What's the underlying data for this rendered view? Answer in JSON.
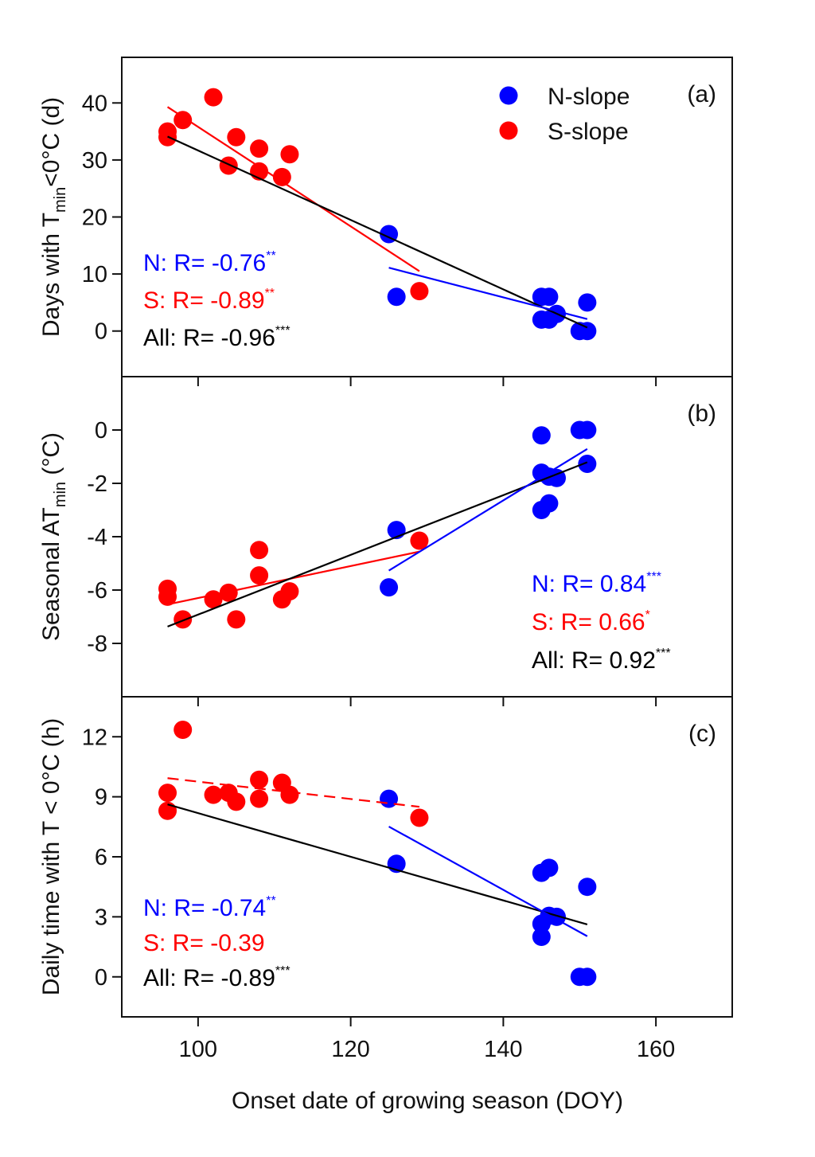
{
  "chart_data": {
    "type": "scatter",
    "xlabel": "Onset date of growing season (DOY)",
    "xlim": [
      90,
      170
    ],
    "xticks": [
      100,
      120,
      140,
      160
    ],
    "colors": {
      "N-slope": "#0000ff",
      "S-slope": "#ff0000",
      "All": "#000000"
    },
    "legend": {
      "placement": "top-right",
      "entries": [
        {
          "name": "N-slope",
          "color": "#0000ff"
        },
        {
          "name": "S-slope",
          "color": "#ff0000"
        }
      ]
    },
    "grid": false,
    "panels": [
      {
        "label": "(a)",
        "ylabel": {
          "main": "Days with T",
          "sub": "min",
          "rest": "<0°C (d)"
        },
        "ylim": [
          -8,
          48
        ],
        "yticks": [
          0,
          10,
          20,
          30,
          40
        ],
        "series": [
          {
            "name": "N-slope",
            "x": [
              125,
              126,
              145,
              146,
              145,
              146,
              147,
              150,
              151,
              151
            ],
            "y": [
              17,
              6,
              6,
              6,
              2,
              2,
              3,
              0,
              0,
              5
            ]
          },
          {
            "name": "S-slope",
            "x": [
              96,
              96,
              98,
              102,
              104,
              105,
              108,
              108,
              111,
              112,
              129
            ],
            "y": [
              35,
              34,
              37,
              41,
              29,
              34,
              32,
              28,
              27,
              31,
              7
            ]
          }
        ],
        "fits": [
          {
            "group": "S-slope",
            "x": [
              96,
              129
            ],
            "y": [
              39.3,
              10.5
            ],
            "dashed": false
          },
          {
            "group": "All",
            "x": [
              96,
              151
            ],
            "y": [
              34.1,
              0.6
            ],
            "dashed": false
          },
          {
            "group": "N-slope",
            "x": [
              125,
              151
            ],
            "y": [
              11.1,
              2.1
            ],
            "dashed": false
          }
        ],
        "annotations": [
          {
            "group": "N-slope",
            "text": "N: R= -0.76",
            "sig": "**"
          },
          {
            "group": "S-slope",
            "text": "S: R= -0.89",
            "sig": "**"
          },
          {
            "group": "All",
            "text": "All: R= -0.96",
            "sig": "***"
          }
        ]
      },
      {
        "label": "(b)",
        "ylabel": {
          "main": "Seasonal AT",
          "sub": "min",
          "rest": " (°C)"
        },
        "ylim": [
          -10,
          2
        ],
        "yticks": [
          0,
          -2,
          -4,
          -6,
          -8
        ],
        "series": [
          {
            "name": "N-slope",
            "x": [
              125,
              126,
              145,
              145,
              145,
              146,
              146,
              147,
              150,
              151,
              151
            ],
            "y": [
              -5.9,
              -3.75,
              -0.2,
              -1.6,
              -3.0,
              -2.75,
              -1.75,
              -1.8,
              0,
              0,
              -1.27
            ]
          },
          {
            "name": "S-slope",
            "x": [
              96,
              96,
              98,
              102,
              104,
              105,
              108,
              108,
              111,
              112,
              129
            ],
            "y": [
              -5.95,
              -6.25,
              -7.1,
              -6.35,
              -6.1,
              -7.1,
              -4.5,
              -5.45,
              -6.35,
              -6.05,
              -4.15
            ]
          }
        ],
        "fits": [
          {
            "group": "S-slope",
            "x": [
              96,
              129
            ],
            "y": [
              -6.54,
              -4.56
            ],
            "dashed": false
          },
          {
            "group": "All",
            "x": [
              96,
              151
            ],
            "y": [
              -7.37,
              -1.21
            ],
            "dashed": false
          },
          {
            "group": "N-slope",
            "x": [
              125,
              151
            ],
            "y": [
              -5.27,
              -0.71
            ],
            "dashed": false
          }
        ],
        "annotations": [
          {
            "group": "N-slope",
            "text": "N: R= 0.84",
            "sig": "***"
          },
          {
            "group": "S-slope",
            "text": "S: R= 0.66",
            "sig": "*"
          },
          {
            "group": "All",
            "text": "All: R= 0.92",
            "sig": "***"
          }
        ]
      },
      {
        "label": "(c)",
        "ylabel": {
          "main": "Daily time with T < 0°C (h)",
          "sub": "",
          "rest": ""
        },
        "ylim": [
          -2,
          14
        ],
        "yticks": [
          0,
          3,
          6,
          9,
          12
        ],
        "series": [
          {
            "name": "N-slope",
            "x": [
              125,
              126,
              145,
              146,
              145,
              145,
              146,
              147,
              150,
              151,
              151
            ],
            "y": [
              8.9,
              5.65,
              5.2,
              5.45,
              2.65,
              2.0,
              3.05,
              3.0,
              0,
              0,
              4.5
            ]
          },
          {
            "name": "S-slope",
            "x": [
              96,
              96,
              98,
              102,
              104,
              105,
              108,
              108,
              111,
              112,
              129
            ],
            "y": [
              9.2,
              8.3,
              12.35,
              9.1,
              9.2,
              8.75,
              9.85,
              8.9,
              9.7,
              9.1,
              7.95
            ]
          }
        ],
        "fits": [
          {
            "group": "S-slope",
            "x": [
              96,
              129
            ],
            "y": [
              9.93,
              8.5
            ],
            "dashed": true
          },
          {
            "group": "All",
            "x": [
              96,
              151
            ],
            "y": [
              8.62,
              2.62
            ],
            "dashed": false
          },
          {
            "group": "N-slope",
            "x": [
              125,
              151
            ],
            "y": [
              7.51,
              2.03
            ],
            "dashed": false
          }
        ],
        "annotations": [
          {
            "group": "N-slope",
            "text": "N: R= -0.74",
            "sig": "**"
          },
          {
            "group": "S-slope",
            "text": "S: R= -0.39",
            "sig": ""
          },
          {
            "group": "All",
            "text": "All: R= -0.89",
            "sig": "***"
          }
        ]
      }
    ]
  }
}
